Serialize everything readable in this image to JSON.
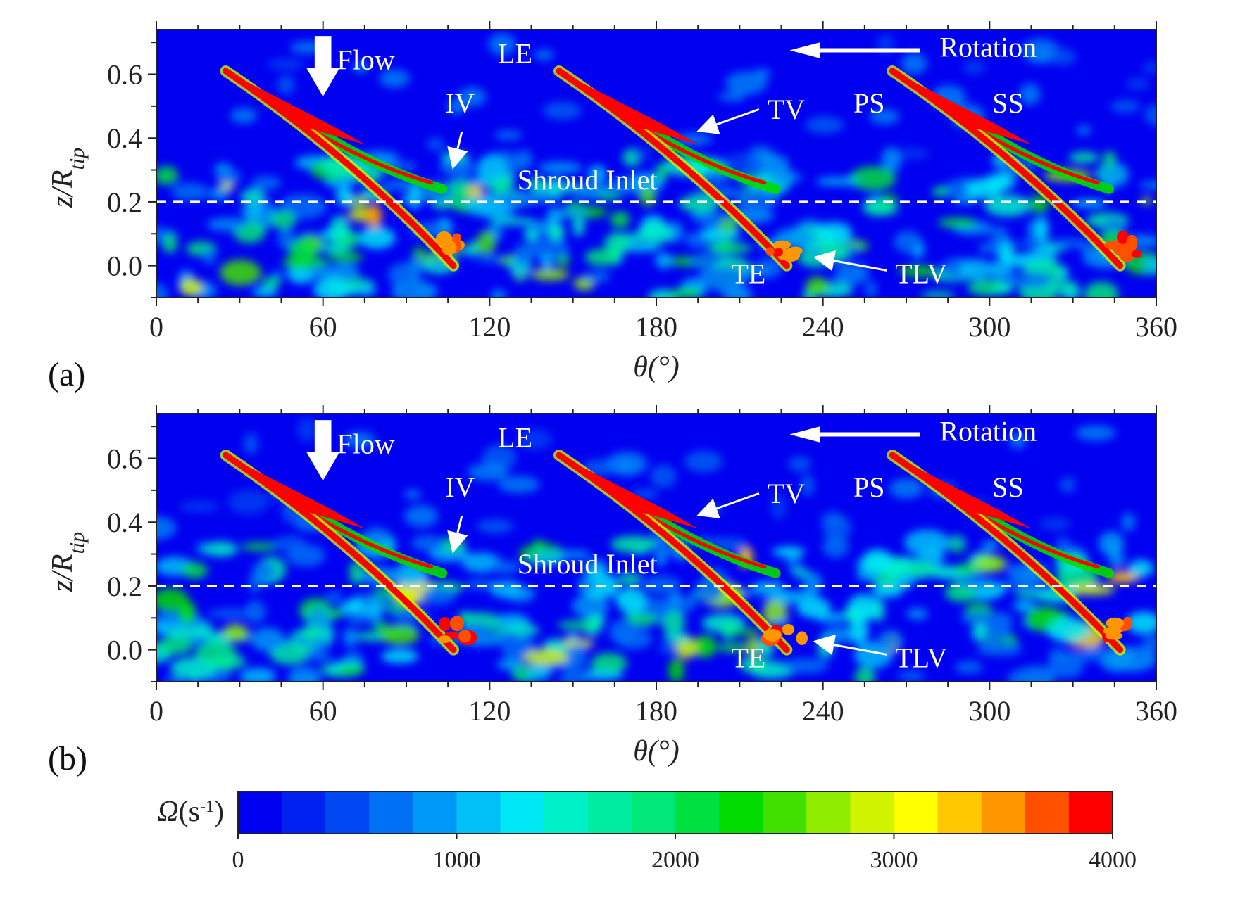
{
  "chart_data": [
    {
      "type": "heatmap",
      "panel_label": "(a)",
      "xlabel": "θ(°)",
      "ylabel": "z/R",
      "ylabel_sub": "tip",
      "xlim": [
        0,
        360
      ],
      "ylim": [
        -0.1,
        0.74
      ],
      "xticks": [
        0,
        60,
        120,
        180,
        240,
        300,
        360
      ],
      "yticks": [
        0.0,
        0.2,
        0.4,
        0.6
      ],
      "ytick_labels": [
        "0.0",
        "0.2",
        "0.4",
        "0.6"
      ],
      "shroud_inlet_z": 0.2,
      "blades": [
        {
          "le": [
            25,
            0.61
          ],
          "te": [
            107,
            0.0
          ]
        },
        {
          "le": [
            145,
            0.61
          ],
          "te": [
            227,
            0.0
          ]
        },
        {
          "le": [
            265,
            0.61
          ],
          "te": [
            347,
            0.0
          ]
        }
      ],
      "annotations": {
        "flow": "Flow",
        "le": "LE",
        "rotation": "Rotation",
        "iv": "IV",
        "tv": "TV",
        "ps": "PS",
        "ss": "SS",
        "shroud_inlet": "Shroud Inlet",
        "te": "TE",
        "tlv": "TLV"
      }
    },
    {
      "type": "heatmap",
      "panel_label": "(b)",
      "xlabel": "θ(°)",
      "ylabel": "z/R",
      "ylabel_sub": "tip",
      "xlim": [
        0,
        360
      ],
      "ylim": [
        -0.1,
        0.74
      ],
      "xticks": [
        0,
        60,
        120,
        180,
        240,
        300,
        360
      ],
      "yticks": [
        0.0,
        0.2,
        0.4,
        0.6
      ],
      "ytick_labels": [
        "0.0",
        "0.2",
        "0.4",
        "0.6"
      ],
      "shroud_inlet_z": 0.2,
      "blades": [
        {
          "le": [
            25,
            0.61
          ],
          "te": [
            107,
            0.0
          ]
        },
        {
          "le": [
            145,
            0.61
          ],
          "te": [
            227,
            0.0
          ]
        },
        {
          "le": [
            265,
            0.61
          ],
          "te": [
            347,
            0.0
          ]
        }
      ],
      "annotations": {
        "flow": "Flow",
        "le": "LE",
        "rotation": "Rotation",
        "iv": "IV",
        "tv": "TV",
        "ps": "PS",
        "ss": "SS",
        "shroud_inlet": "Shroud Inlet",
        "te": "TE",
        "tlv": "TLV"
      }
    }
  ],
  "colorbar": {
    "label": "Ω",
    "label_unit": "(s",
    "label_unit_sup": "-1",
    "label_unit_close": ")",
    "min": 0,
    "max": 4000,
    "levels": 20,
    "tick_values": [
      "0",
      "1000",
      "2000",
      "3000",
      "4000"
    ],
    "colors": [
      "#0000f0",
      "#0022f0",
      "#0048f2",
      "#0070f4",
      "#0098f6",
      "#00c0f8",
      "#00e8f6",
      "#00f0c8",
      "#00eca0",
      "#00e878",
      "#00e040",
      "#00dc00",
      "#40e000",
      "#90ec00",
      "#d0f400",
      "#ffff00",
      "#ffc800",
      "#ff9600",
      "#ff5000",
      "#ff0000"
    ]
  }
}
